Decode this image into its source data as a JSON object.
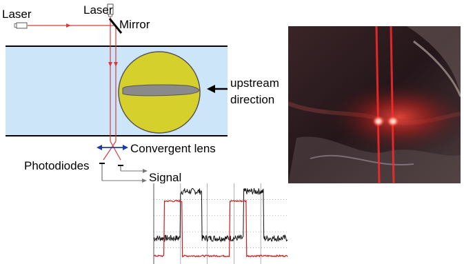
{
  "labels": {
    "laser_left": "Laser",
    "laser_top": "Laser",
    "mirror": "Mirror",
    "upstream_line1": "upstream",
    "upstream_line2": "direction",
    "convergent_lens": "Convergent lens",
    "photodiodes": "Photodiodes",
    "signal": "Signal"
  },
  "colors": {
    "flow_channel": "#cce5f8",
    "disc": "#d6d02c",
    "airfoil": "#8a8a8a",
    "beam": "#d93a3a",
    "lens_arrow": "#1e3aa8",
    "trace_red": "#cc1a1a",
    "trace_black": "#111111",
    "photo_background": "#2a1618"
  },
  "icons": {
    "laser_source": "laser-icon",
    "mirror": "mirror-icon",
    "upstream_arrow": "arrow-left-icon",
    "lens_arrow": "double-arrow-icon",
    "photodiode": "photodiode-icon"
  },
  "oscilloscope": {
    "red_trace_levels": {
      "low": 0.1,
      "high": 0.78
    },
    "black_trace_levels": {
      "low": 0.32,
      "high": 0.9
    },
    "red_pulses": [
      [
        0.08,
        0.21
      ],
      [
        0.57,
        0.69
      ]
    ],
    "black_pulses": [
      [
        0.2,
        0.36
      ],
      [
        0.67,
        0.82
      ]
    ]
  }
}
